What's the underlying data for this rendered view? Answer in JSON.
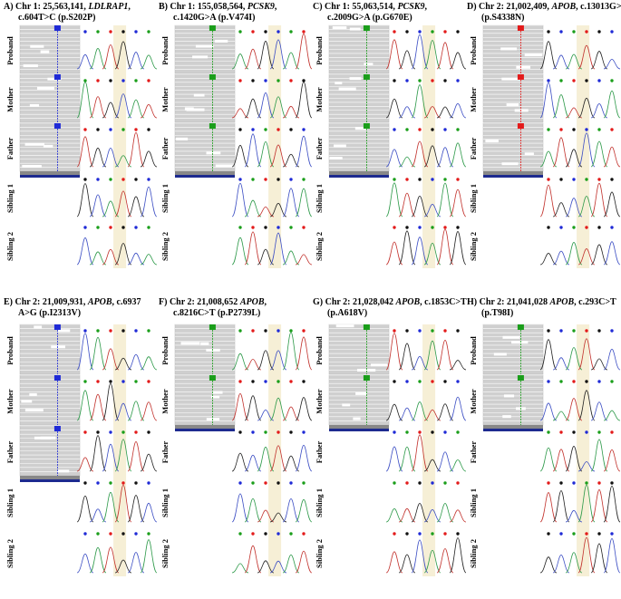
{
  "panels": [
    {
      "letter": "A)",
      "title_line1": "Chr 1: 25,563,141, ",
      "gene": "LDLRAP1",
      "title_line1_end": ",",
      "title_line2": "c.604T>C (p.S202P)",
      "rows": [
        "Proband",
        "Mother",
        "Father",
        "Sibling 1",
        "Sibling 2"
      ],
      "igv_mark_color": "#1f2ad6",
      "igv_rows": 3
    },
    {
      "letter": "B)",
      "title_line1": "Chr 1: 155,058,564, ",
      "gene": "PCSK9",
      "title_line1_end": ",",
      "title_line2": "c.1420G>A (p.V474I)",
      "rows": [
        "Proband",
        "Mother",
        "Father",
        "Sibling 1",
        "Sibling 2"
      ],
      "igv_mark_color": "#1a9e1a",
      "igv_rows": 3
    },
    {
      "letter": "C)",
      "title_line1": "Chr 1: 55,063,514, ",
      "gene": "PCSK9",
      "title_line1_end": ",",
      "title_line2": "c.2009G>A (p.G670E)",
      "rows": [
        "Proband",
        "Mother",
        "Father",
        "Sibling 1",
        "Sibling 2"
      ],
      "igv_mark_color": "#1a9e1a",
      "igv_rows": 3
    },
    {
      "letter": "D)",
      "title_line1": "Chr 2: 21,002,409, ",
      "gene": "APOB",
      "title_line1_end": ", c.13013G>A",
      "title_line2": "(p.S4338N)",
      "rows": [
        "Proband",
        "Mother",
        "Father",
        "Sibling 1",
        "Sibling 2"
      ],
      "igv_mark_color": "#e31a1a",
      "igv_rows": 3
    },
    {
      "letter": "E)",
      "title_line1": "Chr 2: 21,009,931, ",
      "gene": "APOB",
      "title_line1_end": ", c.6937",
      "title_line2": "A>G (p.I2313V)",
      "rows": [
        "Proband",
        "Mother",
        "Father",
        "Sibling 1",
        "Sibling 2"
      ],
      "igv_mark_color": "#1f2ad6",
      "igv_rows": 3
    },
    {
      "letter": "F)",
      "title_line1": "Chr 2: 21,008,652 ",
      "gene": "APOB",
      "title_line1_end": ",",
      "title_line2": "c.8216C>T (p.P2739L)",
      "rows": [
        "Proband",
        "Mother",
        "Father",
        "Sibling 1",
        "Sibling 2"
      ],
      "igv_mark_color": "#1a9e1a",
      "igv_rows": 2
    },
    {
      "letter": "G)",
      "title_line1": "Chr 2: 21,028,042 ",
      "gene": "APOB",
      "title_line1_end": ", c.1853C>T",
      "title_line2": "(p.A618V)",
      "rows": [
        "Proband",
        "Mother",
        "Father",
        "Sibling 1",
        "Sibling 2"
      ],
      "igv_mark_color": "#1a9e1a",
      "igv_rows": 2
    },
    {
      "letter": "H)",
      "title_line1": "Chr 2: 21,041,028 ",
      "gene": "APOB",
      "title_line1_end": ", c.293C>T",
      "title_line2": "(p.T98I)",
      "rows": [
        "Proband",
        "Mother",
        "Father",
        "Sibling 1",
        "Sibling 2"
      ],
      "igv_mark_color": "#1a9e1a",
      "igv_rows": 2
    }
  ],
  "colors": {
    "highlight": "#f6efd6",
    "read_gray": "#cfcfcf",
    "read_border": "#b8b8b8",
    "base_blue": "#1f2ad6",
    "base_green": "#1a9e1a",
    "base_red": "#e31a1a",
    "base_black": "#111111",
    "trace_blue": "#3d4fc4",
    "trace_green": "#2e9a4a",
    "trace_red": "#c2332e",
    "trace_black": "#222222"
  }
}
